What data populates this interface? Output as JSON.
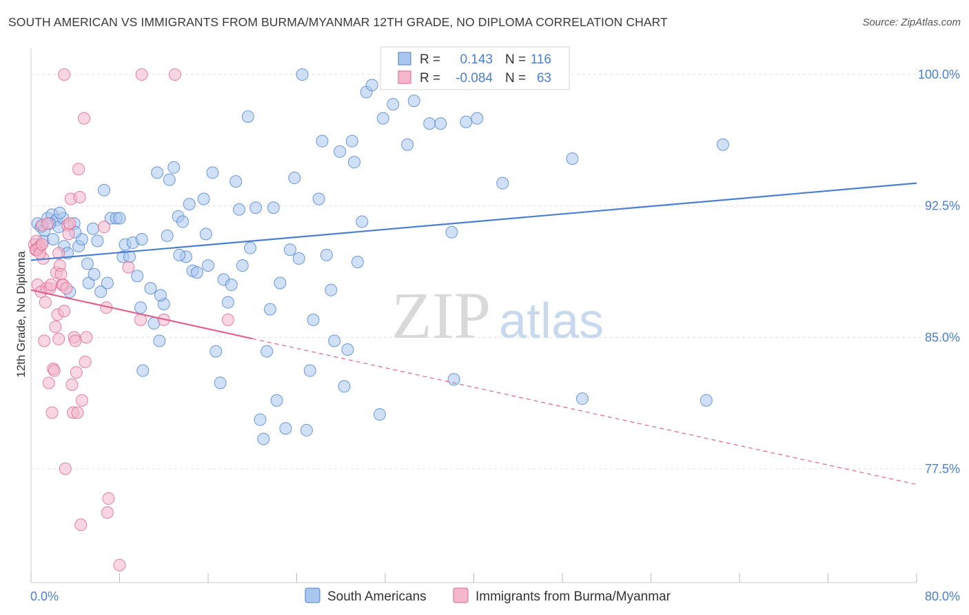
{
  "title": "SOUTH AMERICAN VS IMMIGRANTS FROM BURMA/MYANMAR 12TH GRADE, NO DIPLOMA CORRELATION CHART",
  "source": "Source: ZipAtlas.com",
  "watermark": {
    "zip": "ZIP",
    "atlas": "atlas"
  },
  "colors": {
    "blue": "#4a7fd0",
    "blue_fill": "#a9c6ee",
    "pink": "#e0628c",
    "pink_fill": "#f4b6ca",
    "grid": "#dddddd"
  },
  "legend_box": {
    "rows": [
      {
        "r_label": "R =",
        "r_value": " 0.143",
        "n_label": "N =",
        "n_value": "116"
      },
      {
        "r_label": "R =",
        "r_value": "-0.084",
        "n_label": "N =",
        "n_value": " 63"
      }
    ]
  },
  "bottom_legend": [
    "South Americans",
    "Immigrants from Burma/Myanmar"
  ],
  "chart_data": {
    "type": "scatter",
    "ylabel": "12th Grade, No Diploma",
    "xlim": [
      0,
      80
    ],
    "ylim": [
      71,
      101.5
    ],
    "x_tick_labels": [
      "0.0%",
      "80.0%"
    ],
    "y_ticks": [
      77.5,
      85.0,
      92.5,
      100.0
    ],
    "y_tick_labels": [
      "77.5%",
      "85.0%",
      "92.5%",
      "100.0%"
    ],
    "grid": true,
    "series": [
      {
        "name": "South Americans",
        "color": "#4a7fd0",
        "trend": {
          "x": [
            0,
            80
          ],
          "y": [
            89.4,
            93.8
          ],
          "dashed_from": null
        },
        "points": [
          [
            0.6,
            91.5
          ],
          [
            0.9,
            91.3
          ],
          [
            1.1,
            90.5
          ],
          [
            1.2,
            91.1
          ],
          [
            1.5,
            91.8
          ],
          [
            1.9,
            92.0
          ],
          [
            2.0,
            90.6
          ],
          [
            2.3,
            91.7
          ],
          [
            2.5,
            91.3
          ],
          [
            2.9,
            91.8
          ],
          [
            3.0,
            90.2
          ],
          [
            3.3,
            89.8
          ],
          [
            3.5,
            87.6
          ],
          [
            3.9,
            91.5
          ],
          [
            4.3,
            90.2
          ],
          [
            4.6,
            90.6
          ],
          [
            5.1,
            89.2
          ],
          [
            5.2,
            88.1
          ],
          [
            5.6,
            91.2
          ],
          [
            5.7,
            88.6
          ],
          [
            6.0,
            90.5
          ],
          [
            6.3,
            87.6
          ],
          [
            6.6,
            93.4
          ],
          [
            6.9,
            88.1
          ],
          [
            7.2,
            91.8
          ],
          [
            7.7,
            91.8
          ],
          [
            8.0,
            91.8
          ],
          [
            8.3,
            89.6
          ],
          [
            8.5,
            90.3
          ],
          [
            8.9,
            89.6
          ],
          [
            9.2,
            90.4
          ],
          [
            9.6,
            88.5
          ],
          [
            9.9,
            86.7
          ],
          [
            10.0,
            90.6
          ],
          [
            10.1,
            83.1
          ],
          [
            10.8,
            87.8
          ],
          [
            11.1,
            85.8
          ],
          [
            11.4,
            94.4
          ],
          [
            11.6,
            84.8
          ],
          [
            12.0,
            86.9
          ],
          [
            12.3,
            90.8
          ],
          [
            12.5,
            94.0
          ],
          [
            12.9,
            94.7
          ],
          [
            13.3,
            91.9
          ],
          [
            13.7,
            91.6
          ],
          [
            14.0,
            89.6
          ],
          [
            14.3,
            92.6
          ],
          [
            14.6,
            88.8
          ],
          [
            15.0,
            88.7
          ],
          [
            15.6,
            92.9
          ],
          [
            15.8,
            90.9
          ],
          [
            16.0,
            89.1
          ],
          [
            16.4,
            94.4
          ],
          [
            16.7,
            84.2
          ],
          [
            17.1,
            82.4
          ],
          [
            17.4,
            88.3
          ],
          [
            17.8,
            87.0
          ],
          [
            18.1,
            88.0
          ],
          [
            18.5,
            93.9
          ],
          [
            18.8,
            92.3
          ],
          [
            19.1,
            89.1
          ],
          [
            19.6,
            97.6
          ],
          [
            19.8,
            90.1
          ],
          [
            20.3,
            92.4
          ],
          [
            20.7,
            80.3
          ],
          [
            21.0,
            79.2
          ],
          [
            21.3,
            84.2
          ],
          [
            21.6,
            86.6
          ],
          [
            21.9,
            92.4
          ],
          [
            22.2,
            81.4
          ],
          [
            22.5,
            88.1
          ],
          [
            23.0,
            79.8
          ],
          [
            23.4,
            90.0
          ],
          [
            23.8,
            94.1
          ],
          [
            24.2,
            89.5
          ],
          [
            24.9,
            79.7
          ],
          [
            25.2,
            83.1
          ],
          [
            25.5,
            86.0
          ],
          [
            26.0,
            92.9
          ],
          [
            26.3,
            96.2
          ],
          [
            26.7,
            89.7
          ],
          [
            27.1,
            87.7
          ],
          [
            27.4,
            84.8
          ],
          [
            27.9,
            95.6
          ],
          [
            28.3,
            82.2
          ],
          [
            28.6,
            84.3
          ],
          [
            29.0,
            96.2
          ],
          [
            29.2,
            95.0
          ],
          [
            29.5,
            89.3
          ],
          [
            29.9,
            91.6
          ],
          [
            30.3,
            99.0
          ],
          [
            30.8,
            99.4
          ],
          [
            31.5,
            80.6
          ],
          [
            31.8,
            97.5
          ],
          [
            32.7,
            98.3
          ],
          [
            33.5,
            99.6
          ],
          [
            34.0,
            96.0
          ],
          [
            34.6,
            98.5
          ],
          [
            36.0,
            97.2
          ],
          [
            37.0,
            97.2
          ],
          [
            38.0,
            91.0
          ],
          [
            38.2,
            82.6
          ],
          [
            39.3,
            97.3
          ],
          [
            40.3,
            97.5
          ],
          [
            42.6,
            93.8
          ],
          [
            48.9,
            95.2
          ],
          [
            49.8,
            81.5
          ],
          [
            61.0,
            81.4
          ],
          [
            62.5,
            96.0
          ],
          [
            24.5,
            100.0
          ],
          [
            32.5,
            100.0
          ],
          [
            2.6,
            92.1
          ],
          [
            1.7,
            91.5
          ],
          [
            4.0,
            91.0
          ],
          [
            11.7,
            87.4
          ],
          [
            13.4,
            89.7
          ]
        ]
      },
      {
        "name": "Immigrants from Burma/Myanmar",
        "color": "#e0628c",
        "trend": {
          "x": [
            0,
            80
          ],
          "y": [
            87.7,
            76.6
          ],
          "dashed_from": 20
        },
        "points": [
          [
            0.3,
            90.3
          ],
          [
            0.4,
            90.0
          ],
          [
            0.5,
            90.5
          ],
          [
            0.6,
            88.0
          ],
          [
            0.7,
            90.1
          ],
          [
            0.8,
            90.2
          ],
          [
            0.9,
            87.6
          ],
          [
            1.0,
            91.4
          ],
          [
            1.1,
            89.5
          ],
          [
            1.2,
            84.8
          ],
          [
            1.3,
            87.0
          ],
          [
            1.4,
            87.8
          ],
          [
            1.5,
            91.5
          ],
          [
            1.6,
            82.4
          ],
          [
            1.7,
            87.8
          ],
          [
            1.8,
            88.0
          ],
          [
            1.9,
            80.7
          ],
          [
            2.0,
            83.2
          ],
          [
            2.1,
            83.1
          ],
          [
            2.2,
            85.6
          ],
          [
            2.3,
            88.7
          ],
          [
            2.4,
            86.3
          ],
          [
            2.5,
            84.9
          ],
          [
            2.6,
            89.1
          ],
          [
            2.7,
            88.6
          ],
          [
            2.8,
            88.0
          ],
          [
            2.9,
            88.0
          ],
          [
            3.0,
            86.5
          ],
          [
            3.1,
            77.5
          ],
          [
            3.2,
            87.8
          ],
          [
            3.3,
            91.4
          ],
          [
            3.4,
            90.9
          ],
          [
            3.5,
            91.5
          ],
          [
            3.6,
            92.9
          ],
          [
            3.7,
            82.3
          ],
          [
            3.8,
            80.7
          ],
          [
            3.9,
            85.0
          ],
          [
            4.0,
            84.8
          ],
          [
            4.1,
            83.0
          ],
          [
            4.2,
            80.7
          ],
          [
            4.3,
            94.6
          ],
          [
            4.4,
            93.0
          ],
          [
            4.5,
            74.3
          ],
          [
            4.6,
            81.4
          ],
          [
            4.8,
            97.5
          ],
          [
            4.9,
            83.6
          ],
          [
            5.0,
            85.0
          ],
          [
            6.6,
            91.3
          ],
          [
            6.8,
            86.7
          ],
          [
            7.0,
            75.8
          ],
          [
            6.9,
            75.0
          ],
          [
            8.0,
            72.0
          ],
          [
            8.8,
            89.0
          ],
          [
            9.9,
            86.0
          ],
          [
            12.0,
            86.0
          ],
          [
            17.8,
            86.0
          ],
          [
            3.0,
            100.0
          ],
          [
            10.0,
            100.0
          ],
          [
            13.0,
            100.0
          ],
          [
            0.5,
            90.0
          ],
          [
            0.8,
            89.8
          ],
          [
            1.0,
            90.3
          ],
          [
            2.5,
            89.8
          ]
        ]
      }
    ]
  }
}
